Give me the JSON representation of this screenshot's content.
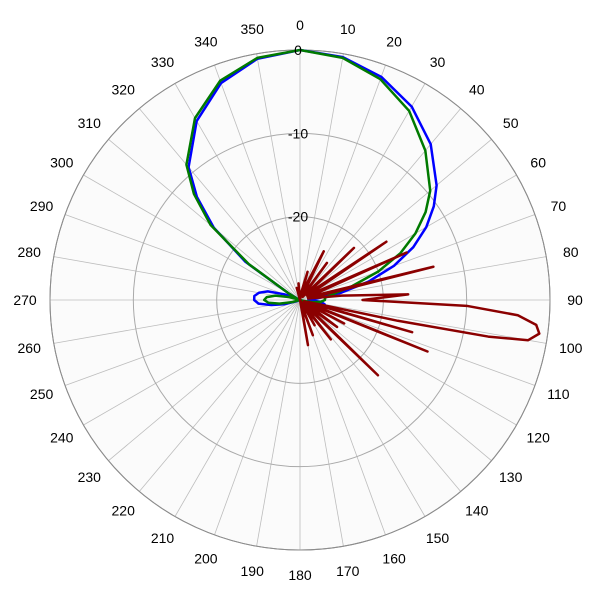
{
  "chart_data": {
    "type": "polar-line",
    "angle_labels": [
      "0",
      "10",
      "20",
      "30",
      "40",
      "50",
      "60",
      "70",
      "80",
      "90",
      "100",
      "110",
      "120",
      "130",
      "140",
      "150",
      "160",
      "170",
      "180",
      "190",
      "200",
      "210",
      "220",
      "230",
      "240",
      "250",
      "260",
      "270",
      "280",
      "290",
      "300",
      "310",
      "320",
      "330",
      "340",
      "350"
    ],
    "radial_tick_labels": [
      "0",
      "-10",
      "-20"
    ],
    "radial_range": [
      -30,
      0
    ],
    "radial_ticks": [
      0,
      -10,
      -20,
      -30
    ],
    "angular_direction": "clockwise",
    "zero_direction": "top",
    "grid": true,
    "plot_fill": "#fbfbfb",
    "grid_color": "#bdbdbd",
    "series": [
      {
        "color": "#0000ff",
        "points": [
          [
            0,
            0
          ],
          [
            10,
            -0.4
          ],
          [
            20,
            -1.5
          ],
          [
            30,
            -3.2
          ],
          [
            40,
            -5.6
          ],
          [
            50,
            -8.6
          ],
          [
            55,
            -10.4
          ],
          [
            60,
            -12.5
          ],
          [
            65,
            -15
          ],
          [
            70,
            -18
          ],
          [
            75,
            -21.5
          ],
          [
            80,
            -25
          ],
          [
            85,
            -28
          ],
          [
            90,
            -29
          ],
          [
            95,
            -27.5
          ],
          [
            100,
            -27
          ],
          [
            105,
            -28.5
          ],
          [
            110,
            -29.8
          ],
          [
            120,
            -30
          ],
          [
            180,
            -30
          ],
          [
            240,
            -30
          ],
          [
            250,
            -29.5
          ],
          [
            255,
            -28
          ],
          [
            260,
            -26.5
          ],
          [
            265,
            -25
          ],
          [
            270,
            -24.5
          ],
          [
            275,
            -24.5
          ],
          [
            280,
            -25
          ],
          [
            285,
            -26
          ],
          [
            290,
            -28
          ],
          [
            295,
            -29.7
          ],
          [
            300,
            -28.5
          ],
          [
            305,
            -22
          ],
          [
            310,
            -16.5
          ],
          [
            315,
            -12.5
          ],
          [
            320,
            -9.2
          ],
          [
            330,
            -5.2
          ],
          [
            340,
            -2.3
          ],
          [
            350,
            -0.6
          ],
          [
            360,
            0
          ]
        ]
      },
      {
        "color": "#007a00",
        "points": [
          [
            0,
            0
          ],
          [
            10,
            -0.5
          ],
          [
            20,
            -1.8
          ],
          [
            30,
            -3.8
          ],
          [
            40,
            -6.6
          ],
          [
            50,
            -9.6
          ],
          [
            55,
            -11.6
          ],
          [
            60,
            -14
          ],
          [
            65,
            -16.7
          ],
          [
            70,
            -20
          ],
          [
            75,
            -23.5
          ],
          [
            80,
            -26
          ],
          [
            85,
            -27
          ],
          [
            90,
            -27
          ],
          [
            95,
            -27.5
          ],
          [
            100,
            -28.5
          ],
          [
            105,
            -29.6
          ],
          [
            110,
            -30
          ],
          [
            180,
            -30
          ],
          [
            250,
            -30
          ],
          [
            255,
            -29
          ],
          [
            260,
            -27.5
          ],
          [
            265,
            -26.2
          ],
          [
            270,
            -25.7
          ],
          [
            275,
            -26
          ],
          [
            280,
            -27
          ],
          [
            285,
            -28.6
          ],
          [
            290,
            -29.8
          ],
          [
            300,
            -28.5
          ],
          [
            305,
            -22.5
          ],
          [
            310,
            -16
          ],
          [
            315,
            -12
          ],
          [
            320,
            -8.8
          ],
          [
            330,
            -4.8
          ],
          [
            340,
            -2
          ],
          [
            350,
            -0.5
          ],
          [
            360,
            0
          ]
        ]
      },
      {
        "color": "#8b0000",
        "points": [
          [
            0,
            -30
          ],
          [
            10,
            -29
          ],
          [
            15,
            -26.5
          ],
          [
            18,
            -29.5
          ],
          [
            22,
            -28
          ],
          [
            26,
            -23.5
          ],
          [
            30,
            -29.5
          ],
          [
            36,
            -24.5
          ],
          [
            40,
            -29.5
          ],
          [
            46,
            -21
          ],
          [
            50,
            -29
          ],
          [
            56,
            -17.5
          ],
          [
            60,
            -29
          ],
          [
            66,
            -16
          ],
          [
            70,
            -29
          ],
          [
            76,
            -13.5
          ],
          [
            80,
            -29
          ],
          [
            84,
            -25
          ],
          [
            87,
            -17
          ],
          [
            90,
            -22.5
          ],
          [
            92,
            -10
          ],
          [
            94,
            -3.8
          ],
          [
            96,
            -1.5
          ],
          [
            98,
            -1
          ],
          [
            100,
            -2.2
          ],
          [
            101,
            -7
          ],
          [
            102,
            -18
          ],
          [
            104,
            -29
          ],
          [
            106,
            -16
          ],
          [
            108,
            -29.5
          ],
          [
            112,
            -13.5
          ],
          [
            116,
            -29.5
          ],
          [
            118,
            -24
          ],
          [
            120,
            -29
          ],
          [
            126,
            -24.5
          ],
          [
            130,
            -29
          ],
          [
            134,
            -17
          ],
          [
            138,
            -29.5
          ],
          [
            142,
            -24
          ],
          [
            146,
            -29
          ],
          [
            150,
            -26.5
          ],
          [
            154,
            -30
          ],
          [
            160,
            -25.5
          ],
          [
            165,
            -29.5
          ],
          [
            170,
            -24.5
          ],
          [
            175,
            -30
          ],
          [
            180,
            -30
          ],
          [
            200,
            -30
          ],
          [
            300,
            -30
          ],
          [
            340,
            -30
          ],
          [
            345,
            -28.5
          ],
          [
            350,
            -30
          ],
          [
            355,
            -28
          ],
          [
            360,
            -30
          ]
        ]
      }
    ]
  }
}
